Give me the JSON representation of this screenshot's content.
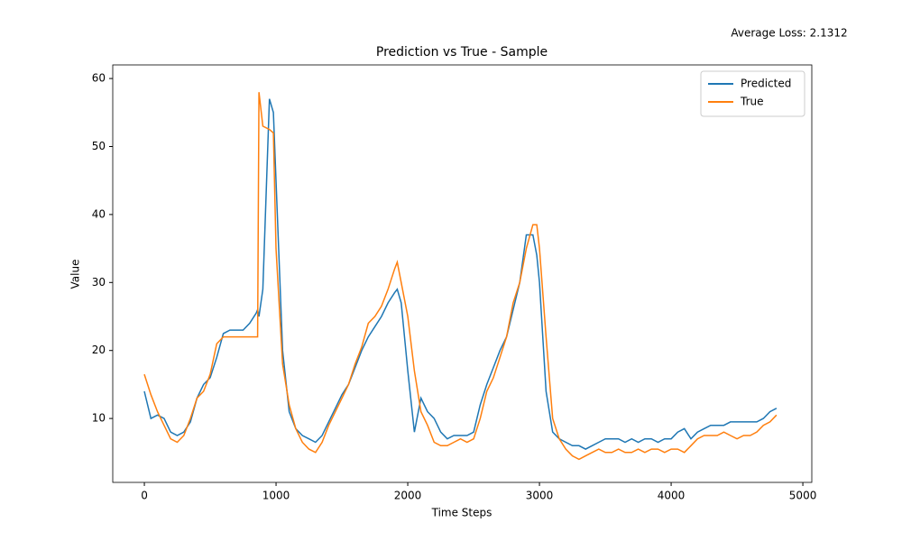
{
  "chart_data": {
    "type": "line",
    "title": "Prediction vs True - Sample",
    "annotation": "Average Loss: 2.1312",
    "x_label": "Time Steps",
    "y_label": "Value",
    "x": [
      0,
      50,
      100,
      150,
      200,
      250,
      300,
      350,
      400,
      450,
      500,
      550,
      600,
      650,
      700,
      750,
      800,
      850,
      860,
      870,
      900,
      950,
      980,
      1000,
      1050,
      1100,
      1150,
      1200,
      1250,
      1300,
      1350,
      1400,
      1450,
      1500,
      1550,
      1600,
      1650,
      1700,
      1750,
      1800,
      1850,
      1900,
      1920,
      1950,
      2000,
      2050,
      2100,
      2150,
      2200,
      2250,
      2300,
      2350,
      2400,
      2450,
      2500,
      2550,
      2600,
      2650,
      2700,
      2750,
      2800,
      2850,
      2900,
      2950,
      2980,
      3000,
      3050,
      3100,
      3150,
      3200,
      3250,
      3300,
      3350,
      3400,
      3450,
      3500,
      3550,
      3600,
      3650,
      3700,
      3750,
      3800,
      3850,
      3900,
      3950,
      4000,
      4050,
      4100,
      4150,
      4200,
      4250,
      4300,
      4350,
      4400,
      4450,
      4500,
      4550,
      4600,
      4650,
      4700,
      4750,
      4800
    ],
    "series": [
      {
        "name": "Predicted",
        "color": "#1f77b4",
        "values": [
          14,
          10,
          10.5,
          10,
          8,
          7.5,
          8,
          9.5,
          13,
          15,
          16,
          19,
          22.5,
          23,
          23,
          23,
          24,
          25.5,
          26,
          25,
          29,
          57,
          55,
          45,
          20,
          11,
          8.5,
          7.5,
          7,
          6.5,
          7.5,
          9.5,
          11.5,
          13.5,
          15,
          17.5,
          20,
          22,
          23.5,
          25,
          27,
          28.5,
          29,
          27,
          17,
          8,
          13,
          11,
          10,
          8,
          7,
          7.5,
          7.5,
          7.5,
          8,
          12,
          15,
          17.5,
          20,
          22,
          26,
          30,
          37,
          37,
          34,
          30,
          14,
          8,
          7,
          6.5,
          6,
          6,
          5.5,
          6,
          6.5,
          7,
          7,
          7,
          6.5,
          7,
          6.5,
          7,
          7,
          6.5,
          7,
          7,
          8,
          8.5,
          7,
          8,
          8.5,
          9,
          9,
          9,
          9.5,
          9.5,
          9.5,
          9.5,
          9.5,
          10,
          11,
          11.5
        ]
      },
      {
        "name": "True",
        "color": "#ff7f0e",
        "values": [
          16.5,
          13.5,
          11,
          9,
          7,
          6.5,
          7.5,
          10,
          13,
          14,
          16.5,
          21,
          22,
          22,
          22,
          22,
          22,
          22,
          22,
          58,
          53,
          52.5,
          52,
          35,
          18,
          12,
          8.5,
          6.5,
          5.5,
          5,
          6.5,
          9,
          11,
          13,
          15,
          18,
          20.5,
          24,
          25,
          26.5,
          29,
          32,
          33,
          30,
          25,
          17,
          11,
          9,
          6.5,
          6,
          6,
          6.5,
          7,
          6.5,
          7,
          10,
          14,
          16,
          19,
          22,
          27,
          30,
          35,
          38.5,
          38.5,
          35,
          22,
          10,
          7,
          5.5,
          4.5,
          4,
          4.5,
          5,
          5.5,
          5,
          5,
          5.5,
          5,
          5,
          5.5,
          5,
          5.5,
          5.5,
          5,
          5.5,
          5.5,
          5,
          6,
          7,
          7.5,
          7.5,
          7.5,
          8,
          7.5,
          7,
          7.5,
          7.5,
          8,
          9,
          9.5,
          10.5
        ]
      }
    ],
    "xlim": [
      -240,
      5068
    ],
    "ylim": [
      0.6,
      62.0
    ],
    "xticks": [
      0,
      1000,
      2000,
      3000,
      4000,
      5000
    ],
    "yticks": [
      10,
      20,
      30,
      40,
      50,
      60
    ],
    "legend": "upper right"
  }
}
